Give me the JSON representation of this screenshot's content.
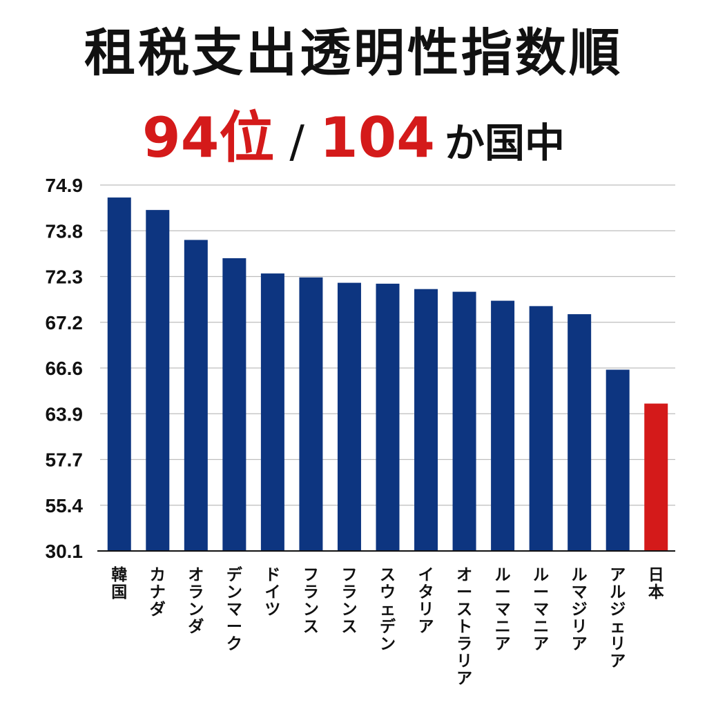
{
  "headline": {
    "title": "租税支出透明性指数順",
    "rank": "94位",
    "slash": "/",
    "total": "104",
    "suffix": "か国中"
  },
  "colors": {
    "bar": "#0d3580",
    "highlight": "#d41a1a",
    "grid": "#bdbdbd",
    "axis": "#111111"
  },
  "chart_data": {
    "type": "bar",
    "title": "租税支出透明性指数順",
    "categories": [
      "韓国",
      "カナダ",
      "オランダ",
      "デンマーク",
      "ドイツ",
      "フランス",
      "フランス",
      "スウェデン",
      "イタリア",
      "オーストラリア",
      "ルーマニア",
      "ルーマニア",
      "ルマジリア",
      "アルジェリア",
      "日本"
    ],
    "highlight_index": 14,
    "y_tick_labels": [
      "74.9",
      "73.8",
      "72.3",
      "67.2",
      "66.6",
      "63.9",
      "57.7",
      "55.4",
      "30.1"
    ],
    "y_scale_note": "non-linear tick labels, evenly spaced",
    "values": [
      74.6,
      74.3,
      73.5,
      72.9,
      72.4,
      72.2,
      71.6,
      71.5,
      70.9,
      70.6,
      69.6,
      69.0,
      68.1,
      66.5,
      64.5
    ],
    "grid": true,
    "legend": "none"
  }
}
